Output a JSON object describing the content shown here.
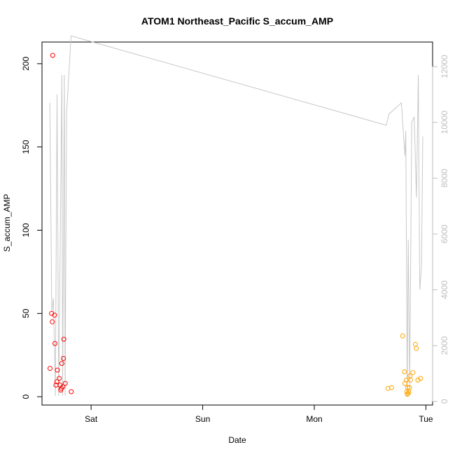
{
  "chart_data": {
    "type": "scatter",
    "title": "ATOM1 Northeast_Pacific S_accum_AMP",
    "xlabel": "Date",
    "ylabel": "S_accum_AMP",
    "x_ticks": [
      {
        "label": "Sat",
        "day": 1.0
      },
      {
        "label": "Sun",
        "day": 2.0
      },
      {
        "label": "Mon",
        "day": 3.0
      },
      {
        "label": "Tue",
        "day": 4.0
      }
    ],
    "xlim_days": [
      0.56,
      4.06
    ],
    "y_ticks": [
      0,
      50,
      100,
      150,
      200
    ],
    "ylim": [
      -5,
      213
    ],
    "y2_ticks": [
      0,
      2000,
      4000,
      6000,
      8000,
      10000,
      12000
    ],
    "y2lim": [
      -130,
      12880
    ],
    "grid": false,
    "colors": {
      "series_1": "#ff0000",
      "series_2": "#ffa500",
      "line": "#c8c8c8",
      "axis": "#000000",
      "right_axis": "#bebebe"
    },
    "scatter_series": [
      {
        "color": "series_1",
        "points": [
          [
            0.632,
            17
          ],
          [
            0.646,
            50
          ],
          [
            0.652,
            45
          ],
          [
            0.656,
            205
          ],
          [
            0.672,
            49
          ],
          [
            0.676,
            32
          ],
          [
            0.685,
            7
          ],
          [
            0.693,
            9
          ],
          [
            0.698,
            16
          ],
          [
            0.714,
            11
          ],
          [
            0.722,
            7
          ],
          [
            0.728,
            4
          ],
          [
            0.733,
            5
          ],
          [
            0.738,
            20
          ],
          [
            0.746,
            6
          ],
          [
            0.752,
            23
          ],
          [
            0.756,
            34.5
          ],
          [
            0.768,
            8
          ],
          [
            0.822,
            3
          ]
        ]
      },
      {
        "color": "series_2",
        "points": [
          [
            3.66,
            5
          ],
          [
            3.692,
            5.5
          ],
          [
            3.792,
            36.5
          ],
          [
            3.808,
            15
          ],
          [
            3.812,
            8
          ],
          [
            3.824,
            10
          ],
          [
            3.829,
            3
          ],
          [
            3.833,
            1.5
          ],
          [
            3.836,
            5.5
          ],
          [
            3.842,
            2
          ],
          [
            3.847,
            3
          ],
          [
            3.853,
            5.5
          ],
          [
            3.858,
            12.5
          ],
          [
            3.862,
            10
          ],
          [
            3.883,
            14.5
          ],
          [
            3.906,
            31.5
          ],
          [
            3.914,
            29
          ],
          [
            3.928,
            10
          ],
          [
            3.952,
            11
          ]
        ]
      }
    ],
    "line_series": {
      "axis": "right",
      "points": [
        [
          0.63,
          10700
        ],
        [
          0.648,
          3200
        ],
        [
          0.662,
          3700
        ],
        [
          0.68,
          200
        ],
        [
          0.695,
          11000
        ],
        [
          0.71,
          200
        ],
        [
          0.738,
          11700
        ],
        [
          0.745,
          200
        ],
        [
          0.76,
          11700
        ],
        [
          0.767,
          200
        ],
        [
          0.78,
          10300
        ],
        [
          0.82,
          13100
        ],
        [
          3.645,
          9900
        ],
        [
          3.67,
          10300
        ],
        [
          3.78,
          10700
        ],
        [
          3.812,
          8800
        ],
        [
          3.82,
          9700
        ],
        [
          3.832,
          200
        ],
        [
          3.842,
          5800
        ],
        [
          3.855,
          500
        ],
        [
          3.873,
          10000
        ],
        [
          3.895,
          10200
        ],
        [
          3.915,
          7300
        ],
        [
          3.932,
          11700
        ],
        [
          3.945,
          4000
        ],
        [
          3.96,
          4800
        ],
        [
          3.972,
          9500
        ]
      ]
    }
  }
}
